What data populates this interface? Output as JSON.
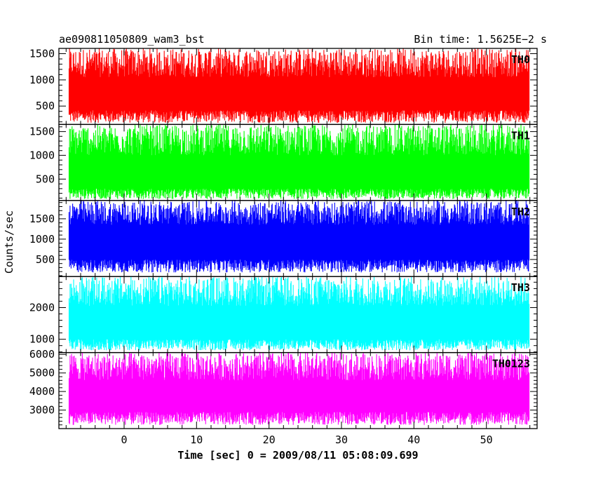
{
  "header": {
    "title": "ae090811050809_wam3_bst",
    "bin_time": "Bin time: 1.5625E−2 s"
  },
  "chart_data": {
    "type": "line",
    "xlabel": "Time [sec] 0 = 2009/08/11 05:08:09.699",
    "ylabel": "Counts/sec",
    "xlim": [
      -9,
      57
    ],
    "x_ticks": [
      0,
      10,
      20,
      30,
      40,
      50
    ],
    "data_x_range": [
      -7.6,
      55.9
    ],
    "grid": false,
    "panels": [
      {
        "name": "TH0",
        "color": "#ff0000",
        "ylim": [
          150,
          1600
        ],
        "y_ticks": [
          500,
          1000,
          1500
        ],
        "band_low": [
          180,
          420
        ],
        "band_high": [
          1050,
          1600
        ],
        "level": 750
      },
      {
        "name": "TH1",
        "color": "#00ff00",
        "ylim": [
          50,
          1650
        ],
        "y_ticks": [
          500,
          1000,
          1500
        ],
        "band_low": [
          80,
          300
        ],
        "band_high": [
          1000,
          1650
        ],
        "level": 650
      },
      {
        "name": "TH2",
        "color": "#0000ff",
        "ylim": [
          80,
          1950
        ],
        "y_ticks": [
          500,
          1000,
          1500
        ],
        "band_low": [
          180,
          500
        ],
        "band_high": [
          1350,
          1950
        ],
        "level": 1000
      },
      {
        "name": "TH3",
        "color": "#00ffff",
        "ylim": [
          580,
          2980
        ],
        "y_ticks": [
          1000,
          2000
        ],
        "band_low": [
          650,
          1000
        ],
        "band_high": [
          2050,
          2980
        ],
        "level": 1500
      },
      {
        "name": "TH0123",
        "color": "#ff00ff",
        "ylim": [
          2000,
          6100
        ],
        "y_ticks": [
          3000,
          4000,
          5000,
          6000
        ],
        "band_low": [
          2200,
          2900
        ],
        "band_high": [
          4600,
          6100
        ],
        "level": 3800
      }
    ]
  }
}
